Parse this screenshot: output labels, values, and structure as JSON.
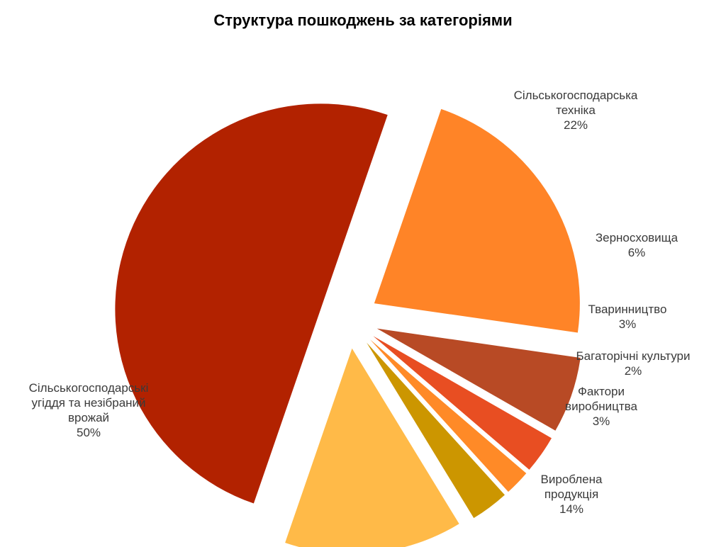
{
  "chart_data": {
    "type": "pie",
    "title": "Структура пошкоджень за категоріями",
    "slices": [
      {
        "label": [
          "Сільськогосподарська",
          "техніка"
        ],
        "value": 22,
        "pct_label": "22%",
        "color": "#FF8427"
      },
      {
        "label": [
          "Зерносховища"
        ],
        "value": 6,
        "pct_label": "6%",
        "color": "#B84A25"
      },
      {
        "label": [
          "Тваринництво"
        ],
        "value": 3,
        "pct_label": "3%",
        "color": "#E84E22"
      },
      {
        "label": [
          "Багаторічні культури"
        ],
        "value": 2,
        "pct_label": "2%",
        "color": "#FF8A27"
      },
      {
        "label": [
          "Фактори",
          "виробництва"
        ],
        "value": 3,
        "pct_label": "3%",
        "color": "#CC9600"
      },
      {
        "label": [
          "Вироблена",
          "продукція"
        ],
        "value": 14,
        "pct_label": "14%",
        "color": "#FFBA48"
      },
      {
        "label": [
          "Сільськогосподарські",
          "угіддя та незібраний",
          "врожай"
        ],
        "value": 50,
        "pct_label": "50%",
        "color": "#B22200"
      }
    ],
    "legend": "none",
    "exploded": true
  }
}
